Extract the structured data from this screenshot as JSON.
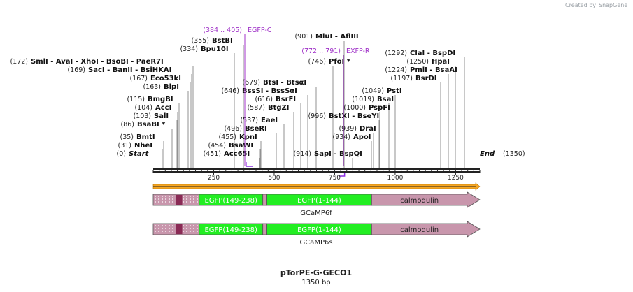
{
  "branding": {
    "created_by": "Created by",
    "app": "SnapGene"
  },
  "map": {
    "name": "pTorPE-G-GECO1",
    "length_label": "1350 bp",
    "length": 1350,
    "start_label": "Start",
    "end_label": "End",
    "start_pos": "(0)",
    "end_pos": "(1350)",
    "ticks": [
      250,
      500,
      750,
      1000,
      1250
    ]
  },
  "sites": [
    {
      "pos": 0,
      "label_pos": "(0)",
      "name": "Start",
      "italic": true
    },
    {
      "pos": 31,
      "label_pos": "(31)",
      "name": "NheI"
    },
    {
      "pos": 35,
      "label_pos": "(35)",
      "name": "BmtI"
    },
    {
      "pos": 86,
      "label_pos": "(86)",
      "name": "BsaBI *"
    },
    {
      "pos": 103,
      "label_pos": "(103)",
      "name": "SalI"
    },
    {
      "pos": 104,
      "label_pos": "(104)",
      "name": "AccI"
    },
    {
      "pos": 115,
      "label_pos": "(115)",
      "name": "BmgBI"
    },
    {
      "pos": 163,
      "label_pos": "(163)",
      "name": "BlpI"
    },
    {
      "pos": 167,
      "label_pos": "(167)",
      "name": "Eco53kI"
    },
    {
      "pos": 169,
      "label_pos": "(169)",
      "name": "SacI  - BanII  - BsiHKAI"
    },
    {
      "pos": 172,
      "label_pos": "(172)",
      "name": "SmlI  - AvaI  - XhoI  - BsoBI  - PaeR7I"
    },
    {
      "pos": 334,
      "label_pos": "(334)",
      "name": "Bpu10I"
    },
    {
      "pos": 355,
      "label_pos": "(355)",
      "name": "BstBI"
    },
    {
      "pos": 451,
      "label_pos": "(451)",
      "name": "Acc65I"
    },
    {
      "pos": 454,
      "label_pos": "(454)",
      "name": "BsaWI"
    },
    {
      "pos": 455,
      "label_pos": "(455)",
      "name": "KpnI"
    },
    {
      "pos": 496,
      "label_pos": "(496)",
      "name": "BseRI"
    },
    {
      "pos": 537,
      "label_pos": "(537)",
      "name": "EaeI"
    },
    {
      "pos": 587,
      "label_pos": "(587)",
      "name": "BtgZI"
    },
    {
      "pos": 616,
      "label_pos": "(616)",
      "name": "BsrFI"
    },
    {
      "pos": 646,
      "label_pos": "(646)",
      "name": "BssSI  - BssSαI"
    },
    {
      "pos": 679,
      "label_pos": "(679)",
      "name": "BtsI  - BtsαI"
    },
    {
      "pos": 746,
      "label_pos": "(746)",
      "name": "PfoI *"
    },
    {
      "pos": 901,
      "label_pos": "(901)",
      "name": "MluI  - AflIII"
    },
    {
      "pos": 914,
      "label_pos": "(914)",
      "name": "SapI  - BspQI"
    },
    {
      "pos": 934,
      "label_pos": "(934)",
      "name": "ApoI"
    },
    {
      "pos": 939,
      "label_pos": "(939)",
      "name": "DraI"
    },
    {
      "pos": 996,
      "label_pos": "(996)",
      "name": "BstXI  - BseYI"
    },
    {
      "pos": 1000,
      "label_pos": "(1000)",
      "name": "PspFI"
    },
    {
      "pos": 1019,
      "label_pos": "(1019)",
      "name": "BsaI"
    },
    {
      "pos": 1049,
      "label_pos": "(1049)",
      "name": "PstI"
    },
    {
      "pos": 1197,
      "label_pos": "(1197)",
      "name": "BsrDI"
    },
    {
      "pos": 1224,
      "label_pos": "(1224)",
      "name": "PmlI  - BsaAI"
    },
    {
      "pos": 1250,
      "label_pos": "(1250)",
      "name": "HpaI"
    },
    {
      "pos": 1292,
      "label_pos": "(1292)",
      "name": "ClaI  - BspDI"
    },
    {
      "pos": 1350,
      "label_pos": "(1350)",
      "name": "End",
      "italic": true
    }
  ],
  "primers": [
    {
      "range": "(384 .. 405)",
      "name": "EGFP-C",
      "start": 384,
      "end": 405,
      "direction": "forward"
    },
    {
      "range": "(772 .. 791)",
      "name": "EXFP-R",
      "start": 772,
      "end": 791,
      "direction": "reverse"
    }
  ],
  "features": {
    "orf": {
      "start": 0,
      "end": 1350,
      "color": "#f5a623"
    },
    "tracks": [
      {
        "caption": "GCaMP6f",
        "segments": [
          {
            "name": "",
            "start": 0,
            "end": 190,
            "color": "#c896ac"
          },
          {
            "name": "EGFP(149-238)",
            "start": 190,
            "end": 453,
            "color": "#22ee22"
          },
          {
            "name": "",
            "start": 453,
            "end": 470,
            "color": "#c896ac"
          },
          {
            "name": "EGFP(1-144)",
            "start": 470,
            "end": 903,
            "color": "#22ee22"
          },
          {
            "name": "calmodulin",
            "start": 903,
            "end": 1350,
            "color": "#c896ac"
          }
        ]
      },
      {
        "caption": "GCaMP6s",
        "segments": [
          {
            "name": "",
            "start": 0,
            "end": 190,
            "color": "#c896ac"
          },
          {
            "name": "EGFP(149-238)",
            "start": 190,
            "end": 453,
            "color": "#22ee22"
          },
          {
            "name": "",
            "start": 453,
            "end": 470,
            "color": "#c896ac"
          },
          {
            "name": "EGFP(1-144)",
            "start": 470,
            "end": 903,
            "color": "#22ee22"
          },
          {
            "name": "calmodulin",
            "start": 903,
            "end": 1350,
            "color": "#c896ac"
          }
        ]
      }
    ]
  }
}
